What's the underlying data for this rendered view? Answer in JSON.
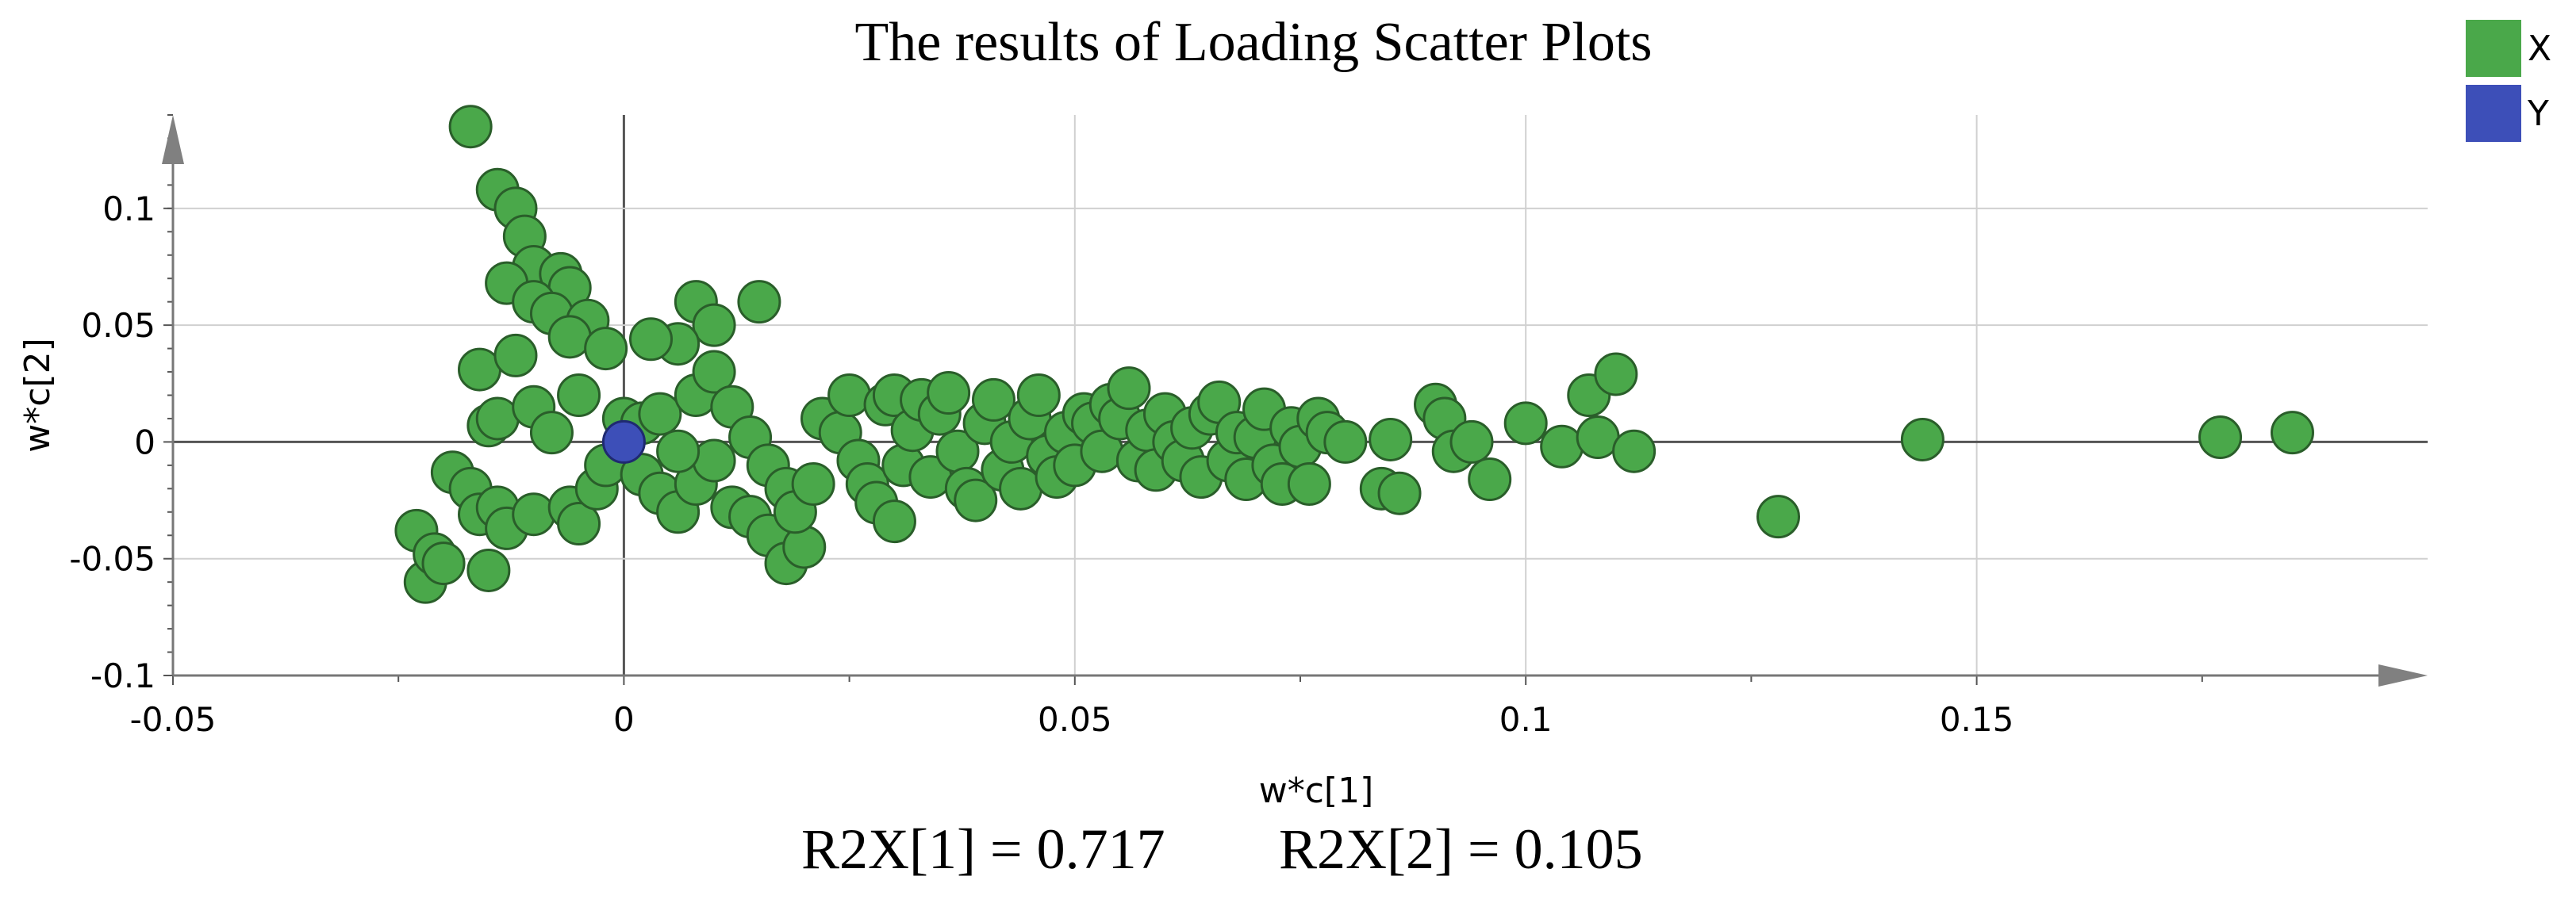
{
  "chart_data": {
    "type": "scatter",
    "title": "The results of Loading Scatter Plots",
    "xlabel": "w*c[1]",
    "ylabel": "w*c[2]",
    "xlim": [
      -0.05,
      0.2
    ],
    "ylim": [
      -0.1,
      0.14
    ],
    "x_ticks": [
      "-0.05",
      "0",
      "0.05",
      "0.1",
      "0.15"
    ],
    "y_ticks": [
      "-0.1",
      "-0.05",
      "0",
      "0.05",
      "0.1"
    ],
    "grid": true,
    "legend_position": "top-right",
    "series": [
      {
        "name": "X",
        "color": "#4aa84a",
        "points": [
          [
            -0.017,
            0.135
          ],
          [
            -0.014,
            0.108
          ],
          [
            -0.012,
            0.1
          ],
          [
            -0.011,
            0.088
          ],
          [
            -0.01,
            0.075
          ],
          [
            -0.013,
            0.068
          ],
          [
            -0.007,
            0.072
          ],
          [
            -0.006,
            0.066
          ],
          [
            -0.01,
            0.06
          ],
          [
            -0.008,
            0.055
          ],
          [
            -0.016,
            0.031
          ],
          [
            -0.012,
            0.037
          ],
          [
            -0.004,
            0.052
          ],
          [
            -0.006,
            0.045
          ],
          [
            -0.002,
            0.04
          ],
          [
            0.008,
            0.06
          ],
          [
            0.015,
            0.06
          ],
          [
            0.01,
            0.05
          ],
          [
            0.006,
            0.042
          ],
          [
            0.003,
            0.044
          ],
          [
            -0.015,
            0.007
          ],
          [
            -0.014,
            0.01
          ],
          [
            -0.01,
            0.015
          ],
          [
            -0.008,
            0.004
          ],
          [
            -0.005,
            0.02
          ],
          [
            -0.019,
            -0.013
          ],
          [
            -0.017,
            -0.02
          ],
          [
            -0.016,
            -0.031
          ],
          [
            -0.014,
            -0.028
          ],
          [
            -0.013,
            -0.037
          ],
          [
            -0.023,
            -0.038
          ],
          [
            -0.022,
            -0.06
          ],
          [
            -0.021,
            -0.048
          ],
          [
            -0.02,
            -0.052
          ],
          [
            -0.015,
            -0.055
          ],
          [
            -0.01,
            -0.031
          ],
          [
            -0.006,
            -0.028
          ],
          [
            -0.005,
            -0.035
          ],
          [
            -0.003,
            -0.02
          ],
          [
            -0.002,
            -0.01
          ],
          [
            0.002,
            -0.014
          ],
          [
            0.004,
            -0.022
          ],
          [
            0.006,
            -0.03
          ],
          [
            0.008,
            -0.018
          ],
          [
            0.01,
            -0.008
          ],
          [
            0.0,
            0.01
          ],
          [
            0.002,
            0.008
          ],
          [
            0.004,
            0.012
          ],
          [
            0.006,
            -0.004
          ],
          [
            0.008,
            0.02
          ],
          [
            0.01,
            0.03
          ],
          [
            0.012,
            0.015
          ],
          [
            0.014,
            0.002
          ],
          [
            0.016,
            -0.01
          ],
          [
            0.018,
            -0.02
          ],
          [
            0.012,
            -0.028
          ],
          [
            0.014,
            -0.032
          ],
          [
            0.016,
            -0.04
          ],
          [
            0.018,
            -0.052
          ],
          [
            0.02,
            -0.045
          ],
          [
            0.019,
            -0.03
          ],
          [
            0.021,
            -0.018
          ],
          [
            0.022,
            0.01
          ],
          [
            0.024,
            0.004
          ],
          [
            0.025,
            0.02
          ],
          [
            0.026,
            -0.008
          ],
          [
            0.027,
            -0.018
          ],
          [
            0.028,
            -0.026
          ],
          [
            0.029,
            0.016
          ],
          [
            0.03,
            0.02
          ],
          [
            0.03,
            -0.034
          ],
          [
            0.031,
            -0.01
          ],
          [
            0.032,
            0.005
          ],
          [
            0.033,
            0.018
          ],
          [
            0.034,
            -0.015
          ],
          [
            0.035,
            0.012
          ],
          [
            0.036,
            0.021
          ],
          [
            0.037,
            -0.004
          ],
          [
            0.038,
            -0.02
          ],
          [
            0.039,
            -0.025
          ],
          [
            0.04,
            0.008
          ],
          [
            0.041,
            0.018
          ],
          [
            0.042,
            -0.012
          ],
          [
            0.043,
            0.0
          ],
          [
            0.044,
            -0.02
          ],
          [
            0.045,
            0.01
          ],
          [
            0.046,
            0.02
          ],
          [
            0.047,
            -0.006
          ],
          [
            0.048,
            -0.015
          ],
          [
            0.049,
            0.004
          ],
          [
            0.05,
            -0.01
          ],
          [
            0.051,
            0.012
          ],
          [
            0.052,
            0.008
          ],
          [
            0.053,
            -0.004
          ],
          [
            0.054,
            0.016
          ],
          [
            0.055,
            0.01
          ],
          [
            0.056,
            0.023
          ],
          [
            0.057,
            -0.008
          ],
          [
            0.058,
            0.005
          ],
          [
            0.059,
            -0.012
          ],
          [
            0.06,
            0.012
          ],
          [
            0.061,
            0.0
          ],
          [
            0.062,
            -0.008
          ],
          [
            0.063,
            0.006
          ],
          [
            0.064,
            -0.015
          ],
          [
            0.065,
            0.012
          ],
          [
            0.066,
            0.017
          ],
          [
            0.067,
            -0.008
          ],
          [
            0.068,
            0.004
          ],
          [
            0.069,
            -0.016
          ],
          [
            0.07,
            0.002
          ],
          [
            0.071,
            0.014
          ],
          [
            0.072,
            -0.01
          ],
          [
            0.073,
            -0.018
          ],
          [
            0.074,
            0.006
          ],
          [
            0.075,
            -0.002
          ],
          [
            0.076,
            -0.018
          ],
          [
            0.077,
            0.01
          ],
          [
            0.078,
            0.004
          ],
          [
            0.08,
            0.0
          ],
          [
            0.084,
            -0.02
          ],
          [
            0.085,
            0.001
          ],
          [
            0.086,
            -0.022
          ],
          [
            0.09,
            0.016
          ],
          [
            0.091,
            0.01
          ],
          [
            0.092,
            -0.004
          ],
          [
            0.094,
            0.0
          ],
          [
            0.096,
            -0.016
          ],
          [
            0.1,
            0.008
          ],
          [
            0.104,
            -0.002
          ],
          [
            0.107,
            0.02
          ],
          [
            0.108,
            0.002
          ],
          [
            0.11,
            0.029
          ],
          [
            0.112,
            -0.004
          ],
          [
            0.128,
            -0.032
          ],
          [
            0.144,
            0.001
          ],
          [
            0.177,
            0.002
          ],
          [
            0.185,
            0.004
          ]
        ]
      },
      {
        "name": "Y",
        "color": "#3d4fb8",
        "points": [
          [
            0.0,
            0.0
          ]
        ]
      }
    ],
    "annotations": [
      "R2X[1] = 0.717",
      "R2X[2] = 0.105"
    ]
  }
}
